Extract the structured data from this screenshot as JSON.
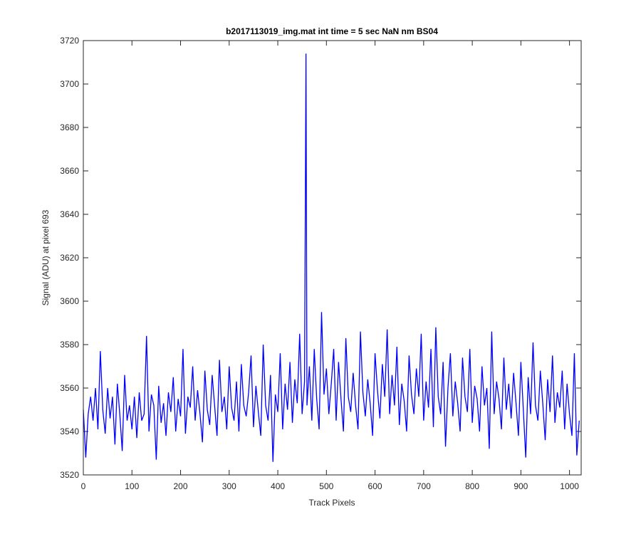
{
  "chart_data": {
    "type": "line",
    "title": "b2017113019_img.mat int time = 5 sec  NaN nm BS04",
    "x_label": "Track Pixels",
    "y_label": "Signal (ADU) at pixel 693",
    "x": [
      0,
      5,
      10,
      15,
      20,
      25,
      30,
      35,
      40,
      45,
      50,
      55,
      60,
      65,
      70,
      75,
      80,
      85,
      90,
      95,
      100,
      105,
      110,
      115,
      120,
      125,
      130,
      135,
      140,
      145,
      150,
      155,
      160,
      165,
      170,
      175,
      180,
      185,
      190,
      195,
      200,
      205,
      210,
      215,
      220,
      225,
      230,
      235,
      240,
      245,
      250,
      255,
      260,
      265,
      270,
      275,
      280,
      285,
      290,
      295,
      300,
      305,
      310,
      315,
      320,
      325,
      330,
      335,
      340,
      345,
      350,
      355,
      360,
      365,
      370,
      375,
      380,
      385,
      390,
      395,
      400,
      405,
      410,
      415,
      420,
      425,
      430,
      435,
      440,
      445,
      450,
      455,
      458,
      460,
      465,
      470,
      475,
      480,
      485,
      490,
      495,
      500,
      505,
      510,
      515,
      520,
      525,
      530,
      535,
      540,
      545,
      550,
      555,
      560,
      565,
      570,
      575,
      580,
      585,
      590,
      595,
      600,
      605,
      610,
      615,
      620,
      625,
      630,
      635,
      640,
      645,
      650,
      655,
      660,
      665,
      670,
      675,
      680,
      685,
      690,
      695,
      700,
      705,
      710,
      715,
      720,
      725,
      730,
      735,
      740,
      745,
      750,
      755,
      760,
      765,
      770,
      775,
      780,
      785,
      790,
      795,
      800,
      805,
      810,
      815,
      820,
      825,
      830,
      835,
      840,
      845,
      850,
      855,
      860,
      865,
      870,
      875,
      880,
      885,
      890,
      895,
      900,
      905,
      910,
      915,
      920,
      925,
      930,
      935,
      940,
      945,
      950,
      955,
      960,
      965,
      970,
      975,
      980,
      985,
      990,
      995,
      1000,
      1005,
      1010,
      1015,
      1020
    ],
    "series": [
      {
        "name": "signal",
        "color": "#0000ff",
        "values": [
          3550,
          3528,
          3548,
          3556,
          3545,
          3560,
          3541,
          3577,
          3550,
          3539,
          3560,
          3546,
          3556,
          3534,
          3562,
          3548,
          3531,
          3566,
          3545,
          3552,
          3541,
          3556,
          3537,
          3558,
          3545,
          3548,
          3584,
          3540,
          3557,
          3552,
          3527,
          3561,
          3544,
          3553,
          3538,
          3558,
          3549,
          3565,
          3540,
          3555,
          3547,
          3578,
          3539,
          3556,
          3551,
          3570,
          3545,
          3559,
          3548,
          3535,
          3568,
          3550,
          3543,
          3566,
          3552,
          3538,
          3573,
          3549,
          3556,
          3541,
          3570,
          3551,
          3545,
          3563,
          3540,
          3571,
          3552,
          3547,
          3558,
          3575,
          3542,
          3561,
          3549,
          3538,
          3580,
          3552,
          3545,
          3566,
          3526,
          3557,
          3549,
          3576,
          3541,
          3562,
          3550,
          3572,
          3544,
          3564,
          3553,
          3585,
          3548,
          3563,
          3714,
          3552,
          3570,
          3545,
          3578,
          3555,
          3541,
          3595,
          3557,
          3569,
          3548,
          3562,
          3578,
          3545,
          3572,
          3555,
          3540,
          3583,
          3556,
          3549,
          3567,
          3552,
          3541,
          3586,
          3558,
          3547,
          3564,
          3553,
          3538,
          3576,
          3559,
          3546,
          3571,
          3556,
          3587,
          3548,
          3566,
          3552,
          3579,
          3543,
          3562,
          3554,
          3540,
          3575,
          3557,
          3548,
          3569,
          3556,
          3585,
          3545,
          3563,
          3551,
          3578,
          3542,
          3588,
          3556,
          3548,
          3572,
          3533,
          3560,
          3576,
          3547,
          3563,
          3553,
          3540,
          3574,
          3556,
          3549,
          3578,
          3544,
          3561,
          3555,
          3540,
          3570,
          3552,
          3560,
          3532,
          3586,
          3548,
          3563,
          3555,
          3541,
          3574,
          3550,
          3562,
          3546,
          3567,
          3553,
          3538,
          3572,
          3550,
          3528,
          3565,
          3548,
          3581,
          3552,
          3545,
          3568,
          3553,
          3536,
          3564,
          3549,
          3575,
          3544,
          3558,
          3551,
          3568,
          3541,
          3562,
          3548,
          3538,
          3576,
          3529,
          3545
        ]
      }
    ],
    "xlim": [
      0,
      1024
    ],
    "ylim": [
      3520,
      3720
    ],
    "xticks": [
      0,
      100,
      200,
      300,
      400,
      500,
      600,
      700,
      800,
      900,
      1000
    ],
    "yticks": [
      3520,
      3540,
      3560,
      3580,
      3600,
      3620,
      3640,
      3660,
      3680,
      3700,
      3720
    ]
  }
}
